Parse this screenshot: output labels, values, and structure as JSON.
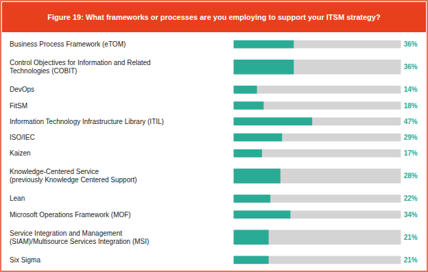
{
  "chart_data": {
    "type": "bar",
    "orientation": "horizontal",
    "title": "Figure 19: What frameworks or processes are you employing to support your ITSM strategy?",
    "categories": [
      "Business Process Framework (eTOM)",
      "Control Objectives for Information and Related\nTechnologies (COBIT)",
      "DevOps",
      "FitSM",
      "Information Technology Infrastructure Library (ITIL)",
      "ISO/IEC",
      "Kaizen",
      "Knowledge-Centered Service\n(previously Knowledge Centered Support)",
      "Lean",
      "Microsoft Operations Framework (MOF)",
      "Service Integration and Management\n(SIAM)/Multisource Services Integration (MSI)",
      "Six Sigma"
    ],
    "values": [
      36,
      36,
      14,
      18,
      47,
      29,
      17,
      28,
      22,
      34,
      21,
      21
    ],
    "value_labels": [
      "36%",
      "36%",
      "14%",
      "18%",
      "47%",
      "29%",
      "17%",
      "28%",
      "22%",
      "34%",
      "21%",
      "21%"
    ],
    "color": "#2aab96",
    "xlim": [
      0,
      100
    ],
    "data_labels": true,
    "tick_labels": false,
    "grid": false
  }
}
